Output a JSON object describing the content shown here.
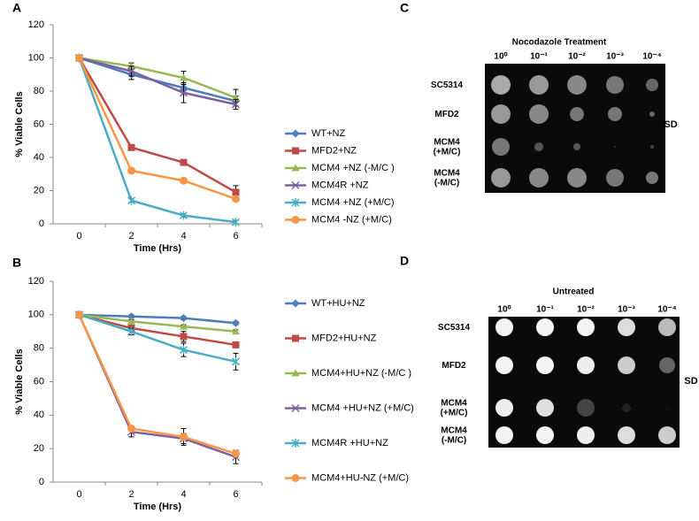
{
  "chart_data": [
    {
      "type": "line",
      "panel": "A",
      "y_label": "% Viable Cells",
      "x_label": "Time (Hrs)",
      "categories": [
        "0",
        "2",
        "4",
        "6"
      ],
      "ylim": [
        0,
        120
      ],
      "yticks": [
        0,
        20,
        40,
        60,
        80,
        100,
        120
      ],
      "series": [
        {
          "name": "WT+NZ",
          "color": "#4a7ebb",
          "marker": "diamond",
          "values": [
            100,
            90,
            82,
            74
          ],
          "errors": [
            0,
            3,
            3,
            3
          ]
        },
        {
          "name": "MFD2+NZ",
          "color": "#be4b48",
          "marker": "square",
          "values": [
            100,
            46,
            37,
            19
          ],
          "errors": [
            0,
            1,
            1,
            4
          ]
        },
        {
          "name": "MCM4  +NZ (-M/C )",
          "color": "#98b954",
          "marker": "triangle",
          "values": [
            100,
            95,
            88,
            76
          ],
          "errors": [
            0,
            2,
            4,
            5
          ]
        },
        {
          "name": "MCM4R +NZ",
          "color": "#7d60a0",
          "marker": "x",
          "values": [
            100,
            92,
            79,
            72
          ],
          "errors": [
            0,
            3,
            6,
            3
          ]
        },
        {
          "name": "MCM4 +NZ (+M/C)",
          "color": "#4bacc6",
          "marker": "star",
          "values": [
            100,
            14,
            5,
            1
          ],
          "errors": [
            0,
            1,
            1,
            1
          ]
        },
        {
          "name": "MCM4 -NZ (+M/C)",
          "color": "#f79646",
          "marker": "circle",
          "values": [
            100,
            32,
            26,
            15
          ],
          "errors": [
            0,
            1,
            1,
            1
          ]
        }
      ]
    },
    {
      "type": "line",
      "panel": "B",
      "y_label": "% Viable Cells",
      "x_label": "Time (Hrs)",
      "categories": [
        "0",
        "2",
        "4",
        "6"
      ],
      "ylim": [
        0,
        120
      ],
      "yticks": [
        0,
        20,
        40,
        60,
        80,
        100,
        120
      ],
      "series": [
        {
          "name": "WT+HU+NZ",
          "color": "#4a7ebb",
          "marker": "diamond",
          "values": [
            100,
            99,
            98,
            95
          ],
          "errors": [
            0,
            1,
            1,
            1
          ]
        },
        {
          "name": "MFD2+HU+NZ",
          "color": "#be4b48",
          "marker": "square",
          "values": [
            100,
            92,
            87,
            82
          ],
          "errors": [
            0,
            1,
            3,
            1
          ]
        },
        {
          "name": "MCM4+HU+NZ  (-M/C )",
          "color": "#98b954",
          "marker": "triangle",
          "values": [
            100,
            96,
            93,
            90
          ],
          "errors": [
            0,
            1,
            1,
            1
          ]
        },
        {
          "name": "MCM4 +HU+NZ (+M/C)",
          "color": "#7d60a0",
          "marker": "x",
          "values": [
            100,
            30,
            26,
            15
          ],
          "errors": [
            0,
            3,
            3,
            4
          ]
        },
        {
          "name": "MCM4R +HU+NZ",
          "color": "#4bacc6",
          "marker": "star",
          "values": [
            100,
            90,
            79,
            72
          ],
          "errors": [
            0,
            2,
            4,
            5
          ]
        },
        {
          "name": "MCM4+HU-NZ (+M/C)",
          "color": "#f79646",
          "marker": "circle",
          "values": [
            100,
            32,
            27,
            17
          ],
          "errors": [
            0,
            1,
            5,
            2
          ]
        }
      ]
    }
  ],
  "spot_assays": [
    {
      "panel": "C",
      "title": "Nocodazole Treatment",
      "dilutions": [
        "10⁰",
        "10⁻¹",
        "10⁻²",
        "10⁻³",
        "10⁻⁴"
      ],
      "strains": [
        [
          "SC5314"
        ],
        [
          "MFD2"
        ],
        [
          "MCM4",
          "(+M/C)"
        ],
        [
          "MCM4",
          "(-M/C)"
        ]
      ],
      "medium": "SD"
    },
    {
      "panel": "D",
      "title": "Untreated",
      "dilutions": [
        "10⁰",
        "10⁻¹",
        "10⁻²",
        "10⁻³",
        "10⁻⁴"
      ],
      "strains": [
        [
          "SC5314"
        ],
        [
          "MFD2"
        ],
        [
          "MCM4",
          "(+M/C)"
        ],
        [
          "MCM4",
          "(-M/C)"
        ]
      ],
      "medium": "SD"
    }
  ]
}
